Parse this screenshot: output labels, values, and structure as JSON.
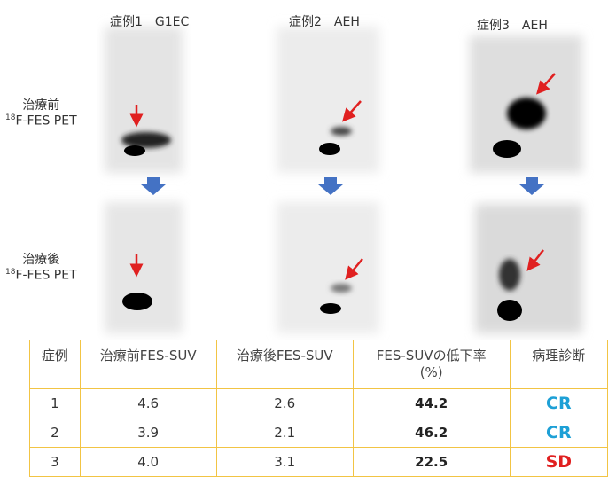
{
  "columns": [
    "症例1　G1EC",
    "症例2　AEH",
    "症例3　AEH"
  ],
  "rows": [
    {
      "line1": "治療前",
      "sup": "18",
      "line2": "F-FES PET"
    },
    {
      "line1": "治療後",
      "sup": "18",
      "line2": "F-FES PET"
    }
  ],
  "table": {
    "header": [
      "症例",
      "治療前FES-SUV",
      "治療後FES-SUV",
      "FES-SUVの低下率",
      "(%)",
      "病理診断"
    ],
    "rows": [
      [
        "1",
        "4.6",
        "2.6",
        "44.2",
        "CR"
      ],
      [
        "2",
        "3.9",
        "2.1",
        "46.2",
        "CR"
      ],
      [
        "3",
        "4.0",
        "3.1",
        "22.5",
        "SD"
      ]
    ]
  }
}
